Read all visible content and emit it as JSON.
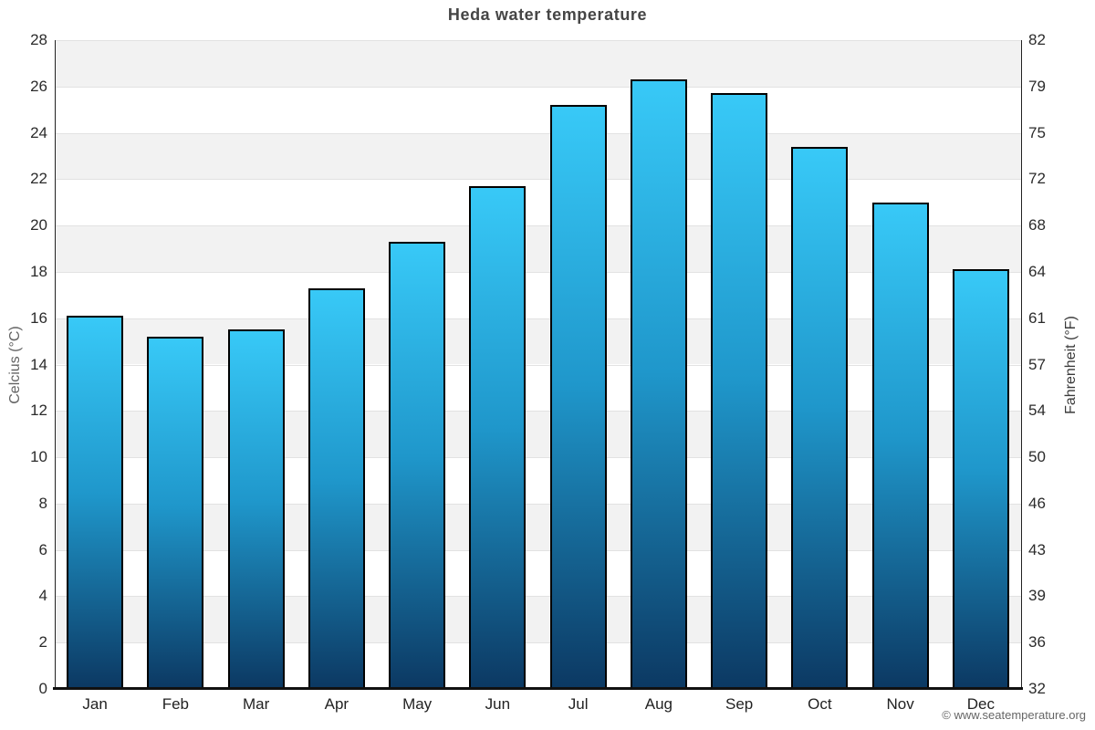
{
  "header": {
    "title": "Heda water temperature"
  },
  "footer": {
    "copyright": "© www.seatemperature.org"
  },
  "chart_data": {
    "type": "bar",
    "title": "Heda water temperature",
    "categories": [
      "Jan",
      "Feb",
      "Mar",
      "Apr",
      "May",
      "Jun",
      "Jul",
      "Aug",
      "Sep",
      "Oct",
      "Nov",
      "Dec"
    ],
    "values": [
      16.1,
      15.2,
      15.5,
      17.3,
      19.3,
      21.7,
      25.2,
      26.3,
      25.7,
      23.4,
      21.0,
      18.1
    ],
    "ylabel_left": "Celcius (°C)",
    "ylabel_right": "Fahrenheit (°F)",
    "ylim": [
      0,
      28
    ],
    "ytick_step_celsius": 2,
    "yticks_celsius": [
      28,
      26,
      24,
      22,
      20,
      18,
      16,
      14,
      12,
      10,
      8,
      6,
      4,
      2,
      0
    ],
    "yticks_fahrenheit": [
      82,
      79,
      75,
      72,
      68,
      64,
      61,
      57,
      54,
      50,
      46,
      43,
      39,
      36,
      32
    ],
    "grid": "alternating horizontal shaded bands with light gridlines every 2°C",
    "legend": "none",
    "colors": {
      "bar_gradient_top": "#38c9f7",
      "bar_gradient_mid": "#1f97cb",
      "bar_gradient_bottom": "#0c3963",
      "bar_border": "#000000",
      "band_shade": "#f2f2f2",
      "gridline": "#e2e2e2",
      "title_text": "#454545",
      "axis_line": "#222222"
    }
  }
}
